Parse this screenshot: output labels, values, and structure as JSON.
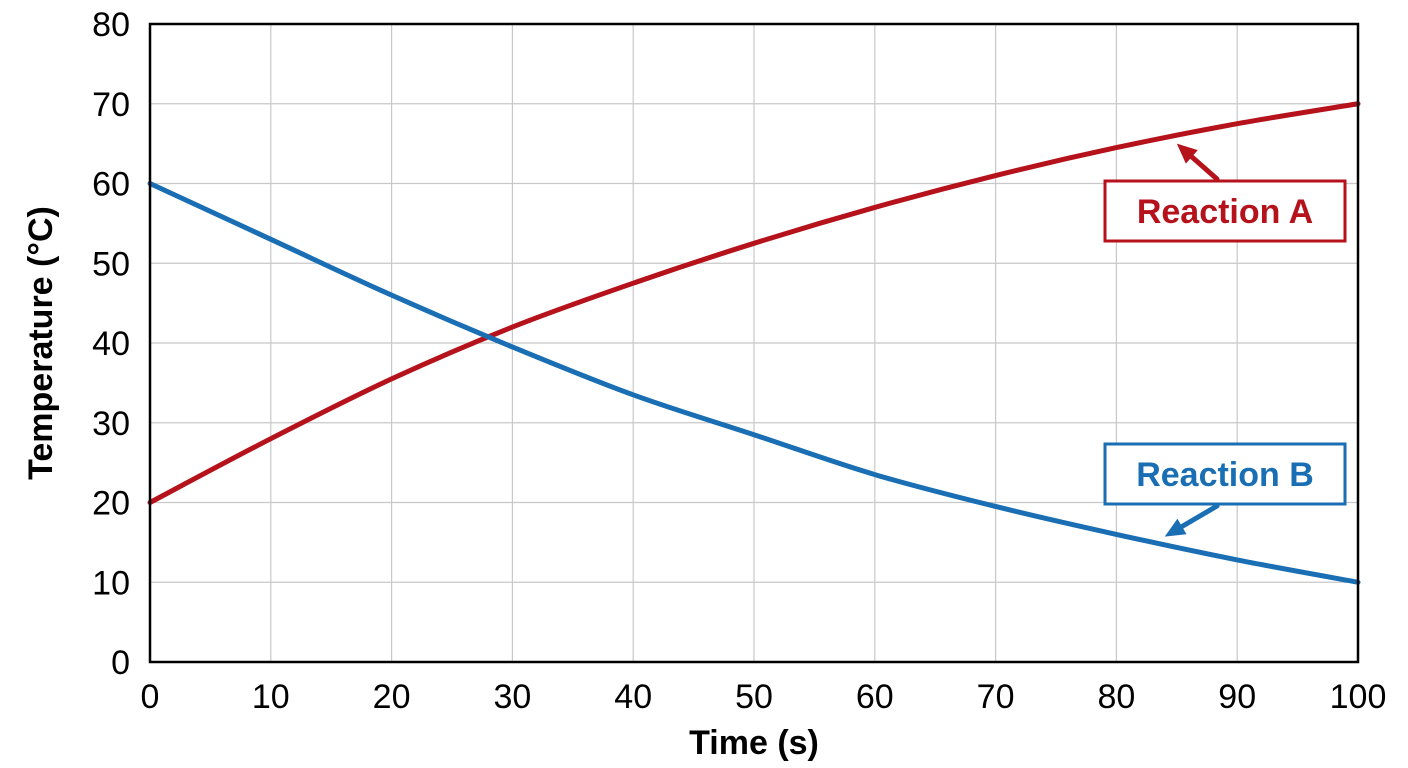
{
  "chart_data": {
    "type": "line",
    "title": "",
    "xlabel": "Time (s)",
    "ylabel": "Temperature (°C)",
    "xlim": [
      0,
      100
    ],
    "ylim": [
      0,
      80
    ],
    "x_ticks": [
      "0",
      "10",
      "20",
      "30",
      "40",
      "50",
      "60",
      "70",
      "80",
      "90",
      "100"
    ],
    "y_ticks": [
      "0",
      "10",
      "20",
      "30",
      "40",
      "50",
      "60",
      "70",
      "80"
    ],
    "grid": true,
    "legend": "none",
    "x": [
      0,
      10,
      20,
      30,
      40,
      50,
      60,
      70,
      80,
      90,
      100
    ],
    "series": [
      {
        "name": "Reaction A",
        "color": "#b5121b",
        "values": [
          20,
          28,
          35.5,
          42,
          47.5,
          52.5,
          57,
          61,
          64.5,
          67.5,
          70
        ],
        "annotation": "Reaction A",
        "annotation_position": "upper-right",
        "annotation_points_to_x": 85
      },
      {
        "name": "Reaction B",
        "color": "#1a6eb3",
        "values": [
          60,
          53,
          46,
          39.5,
          33.5,
          28.5,
          23.5,
          19.5,
          16,
          12.8,
          10
        ],
        "annotation": "Reaction B",
        "annotation_position": "lower-right",
        "annotation_points_to_x": 84
      }
    ]
  }
}
